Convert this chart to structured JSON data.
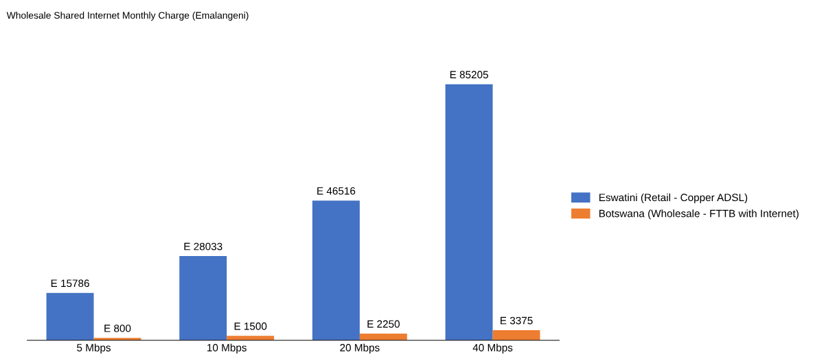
{
  "chart_data": {
    "type": "bar",
    "title": "Wholesale Shared Internet Monthly Charge (Emalangeni)",
    "categories": [
      "5 Mbps",
      "10 Mbps",
      "20 Mbps",
      "40 Mbps"
    ],
    "series": [
      {
        "name": "Eswatini (Retail - Copper ADSL)",
        "color": "#4472c4",
        "values": [
          15786,
          28033,
          46516,
          85205
        ],
        "value_labels": [
          "E 15786",
          "E 28033",
          "E 46516",
          "E 85205"
        ]
      },
      {
        "name": "Botswana (Wholesale - FTTB with Internet)",
        "color": "#ed7d31",
        "values": [
          800,
          1500,
          2250,
          3375
        ],
        "value_labels": [
          "E 800",
          "E 1500",
          "E 2250",
          "E 3375"
        ]
      }
    ],
    "legend": "right",
    "tick_labels": "x",
    "grid": false
  }
}
